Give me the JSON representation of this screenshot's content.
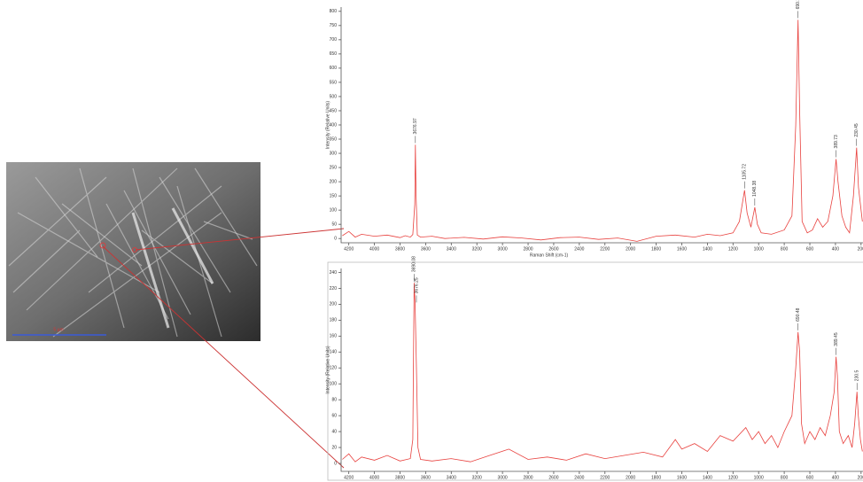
{
  "chart_data": [
    {
      "type": "line",
      "x_label": "Raman Shift (cm-1)",
      "y_label": "Intensity (Relative Units)",
      "x": [
        4250,
        4200,
        4150,
        4100,
        4000,
        3900,
        3800,
        3760,
        3720,
        3700,
        3685,
        3680,
        3675,
        3665,
        3640,
        3550,
        3450,
        3300,
        3150,
        3000,
        2850,
        2700,
        2550,
        2400,
        2250,
        2100,
        1950,
        1800,
        1650,
        1500,
        1400,
        1300,
        1200,
        1150,
        1110,
        1090,
        1060,
        1030,
        1010,
        980,
        900,
        800,
        740,
        710,
        692,
        680,
        660,
        620,
        580,
        540,
        500,
        460,
        420,
        395,
        380,
        350,
        320,
        290,
        260,
        235,
        220,
        205,
        190
      ],
      "series": [
        {
          "color": "#e8413e",
          "values": [
            10,
            25,
            5,
            15,
            8,
            12,
            3,
            10,
            5,
            14,
            120,
            330,
            150,
            12,
            5,
            8,
            0,
            4,
            -2,
            6,
            2,
            -5,
            3,
            5,
            -3,
            2,
            -10,
            8,
            12,
            5,
            15,
            10,
            20,
            60,
            170,
            90,
            40,
            110,
            50,
            20,
            15,
            30,
            80,
            400,
            770,
            450,
            60,
            20,
            30,
            70,
            40,
            60,
            150,
            280,
            200,
            80,
            40,
            20,
            150,
            320,
            180,
            120,
            60
          ]
        }
      ],
      "annotations": [
        {
          "x": 3680,
          "y": 330,
          "text": "3676.97"
        },
        {
          "x": 1110,
          "y": 170,
          "text": "1105.72"
        },
        {
          "x": 1030,
          "y": 110,
          "text": "1048.38"
        },
        {
          "x": 692,
          "y": 770,
          "text": "690.1"
        },
        {
          "x": 395,
          "y": 280,
          "text": "389.73"
        },
        {
          "x": 235,
          "y": 320,
          "text": "230.45"
        }
      ],
      "xlim": [
        4260,
        185
      ],
      "ylim": [
        -15,
        815
      ],
      "xticks": [
        4200,
        4000,
        3800,
        3600,
        3400,
        3200,
        3000,
        2800,
        2600,
        2400,
        2200,
        2000,
        1800,
        1600,
        1400,
        1200,
        1000,
        800,
        600,
        400,
        200
      ],
      "yticks": [
        0,
        50,
        100,
        150,
        200,
        250,
        300,
        350,
        400,
        450,
        500,
        550,
        600,
        650,
        700,
        750,
        800
      ]
    },
    {
      "type": "line",
      "y_label": "Intensity (Relative Units)",
      "x": [
        4250,
        4200,
        4150,
        4100,
        4000,
        3900,
        3800,
        3720,
        3700,
        3690,
        3682,
        3672,
        3660,
        3640,
        3550,
        3400,
        3250,
        3100,
        2950,
        2800,
        2650,
        2500,
        2350,
        2200,
        2050,
        1900,
        1750,
        1650,
        1600,
        1500,
        1400,
        1300,
        1200,
        1100,
        1050,
        1000,
        950,
        900,
        850,
        800,
        740,
        710,
        692,
        680,
        665,
        640,
        600,
        560,
        520,
        480,
        440,
        410,
        395,
        385,
        370,
        340,
        300,
        270,
        250,
        232,
        222,
        205,
        190
      ],
      "series": [
        {
          "color": "#e8413e",
          "values": [
            5,
            12,
            2,
            8,
            4,
            10,
            3,
            6,
            30,
            227,
            200,
            120,
            20,
            5,
            3,
            6,
            2,
            10,
            18,
            5,
            8,
            4,
            12,
            6,
            10,
            14,
            8,
            30,
            18,
            25,
            15,
            35,
            28,
            45,
            30,
            40,
            25,
            35,
            20,
            40,
            60,
            120,
            165,
            140,
            50,
            25,
            40,
            30,
            45,
            35,
            60,
            90,
            134,
            110,
            40,
            25,
            35,
            20,
            50,
            90,
            60,
            30,
            15
          ]
        }
      ],
      "annotations": [
        {
          "x": 3690,
          "y": 227,
          "text": "3690.08"
        },
        {
          "x": 3672,
          "y": 200,
          "text": "3676.25"
        },
        {
          "x": 692,
          "y": 165,
          "text": "690.48"
        },
        {
          "x": 395,
          "y": 134,
          "text": "389.45"
        },
        {
          "x": 232,
          "y": 90,
          "text": "230.5"
        }
      ],
      "xlim": [
        4260,
        185
      ],
      "ylim": [
        -10,
        245
      ],
      "xticks": [
        4200,
        4000,
        3800,
        3600,
        3400,
        3200,
        3000,
        2800,
        2600,
        2400,
        2200,
        2000,
        1800,
        1600,
        1400,
        1200,
        1000,
        800,
        600,
        400,
        200
      ],
      "yticks": [
        0,
        20,
        40,
        60,
        80,
        100,
        120,
        140,
        160,
        180,
        200,
        220,
        240
      ]
    }
  ],
  "image": {
    "scale_label": "5 µm"
  }
}
